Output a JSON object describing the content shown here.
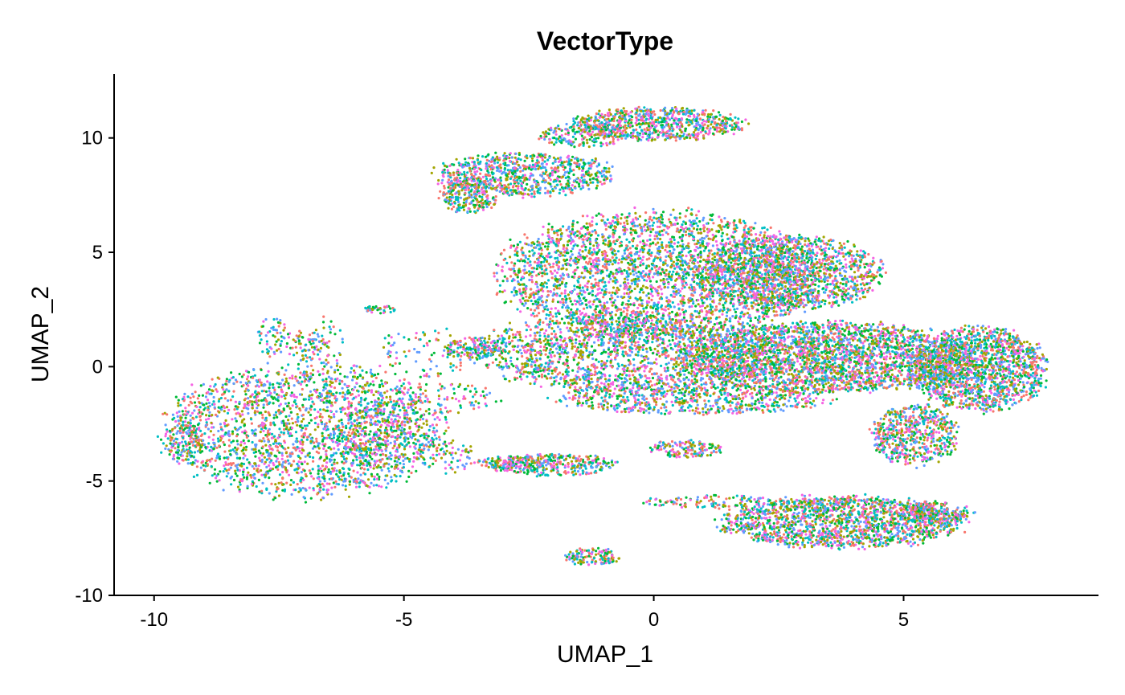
{
  "chart_data": {
    "type": "scatter",
    "title": "VectorType",
    "xlabel": "UMAP_1",
    "ylabel": "UMAP_2",
    "xlim": [
      -10.8,
      8.9
    ],
    "ylim": [
      -10,
      12.8
    ],
    "x_ticks": [
      -10,
      -5,
      0,
      5
    ],
    "y_ticks": [
      -10,
      -5,
      0,
      5,
      10
    ],
    "grid": false,
    "legend": "none",
    "point_colors": [
      "#F8766D",
      "#A3A500",
      "#00BA38",
      "#00BFC4",
      "#619CFF",
      "#F564E3"
    ],
    "cluster_regions": [
      {
        "cx": -7.0,
        "cy": -2.8,
        "rx": 2.9,
        "ry": 3.0,
        "n": 2200
      },
      {
        "cx": -5.6,
        "cy": -3.0,
        "rx": 0.8,
        "ry": 1.6,
        "n": 300
      },
      {
        "cx": -9.4,
        "cy": -3.2,
        "rx": 0.4,
        "ry": 1.0,
        "n": 120
      },
      {
        "cx": -7.6,
        "cy": 1.3,
        "rx": 0.35,
        "ry": 0.9,
        "n": 60
      },
      {
        "cx": -7.0,
        "cy": 0.9,
        "rx": 0.4,
        "ry": 0.7,
        "n": 60
      },
      {
        "cx": -6.5,
        "cy": 1.0,
        "rx": 0.35,
        "ry": 1.2,
        "n": 50
      },
      {
        "cx": -5.5,
        "cy": 2.5,
        "rx": 0.35,
        "ry": 0.2,
        "n": 40
      },
      {
        "cx": -4.6,
        "cy": 0.6,
        "rx": 1.0,
        "ry": 1.2,
        "n": 90
      },
      {
        "cx": -4.2,
        "cy": -1.4,
        "rx": 1.2,
        "ry": 0.7,
        "n": 100
      },
      {
        "cx": -4.2,
        "cy": -3.9,
        "rx": 0.6,
        "ry": 0.8,
        "n": 80
      },
      {
        "cx": -2.6,
        "cy": 8.4,
        "rx": 1.9,
        "ry": 1.0,
        "n": 800
      },
      {
        "cx": -3.7,
        "cy": 7.5,
        "rx": 0.6,
        "ry": 0.8,
        "n": 250
      },
      {
        "cx": 0.1,
        "cy": 10.6,
        "rx": 1.8,
        "ry": 0.75,
        "n": 750
      },
      {
        "cx": -1.4,
        "cy": 10.1,
        "rx": 0.9,
        "ry": 0.5,
        "n": 200
      },
      {
        "cx": 0.1,
        "cy": 4.0,
        "rx": 3.3,
        "ry": 2.9,
        "n": 3200
      },
      {
        "cx": 2.7,
        "cy": 4.1,
        "rx": 1.9,
        "ry": 1.7,
        "n": 1500
      },
      {
        "cx": -0.5,
        "cy": 0.6,
        "rx": 3.2,
        "ry": 1.8,
        "n": 1800
      },
      {
        "cx": 3.5,
        "cy": 0.4,
        "rx": 3.0,
        "ry": 1.6,
        "n": 2800
      },
      {
        "cx": 6.5,
        "cy": -0.1,
        "rx": 1.4,
        "ry": 1.9,
        "n": 1600
      },
      {
        "cx": 5.2,
        "cy": -3.0,
        "rx": 0.9,
        "ry": 1.4,
        "n": 600
      },
      {
        "cx": 0.8,
        "cy": -1.4,
        "rx": 2.8,
        "ry": 0.7,
        "n": 700
      },
      {
        "cx": 3.8,
        "cy": -6.8,
        "rx": 2.5,
        "ry": 1.2,
        "n": 1700
      },
      {
        "cx": 5.6,
        "cy": -6.4,
        "rx": 0.8,
        "ry": 0.5,
        "n": 200
      },
      {
        "cx": -2.0,
        "cy": -4.3,
        "rx": 1.3,
        "ry": 0.5,
        "n": 350
      },
      {
        "cx": -2.8,
        "cy": -4.2,
        "rx": 0.8,
        "ry": 0.3,
        "n": 90
      },
      {
        "cx": 0.6,
        "cy": -3.6,
        "rx": 0.8,
        "ry": 0.4,
        "n": 150
      },
      {
        "cx": -1.2,
        "cy": -8.3,
        "rx": 0.6,
        "ry": 0.4,
        "n": 130
      },
      {
        "cx": -3.6,
        "cy": 0.8,
        "rx": 0.6,
        "ry": 0.5,
        "n": 150
      },
      {
        "cx": 1.2,
        "cy": -5.9,
        "rx": 1.5,
        "ry": 0.3,
        "n": 120
      }
    ]
  }
}
